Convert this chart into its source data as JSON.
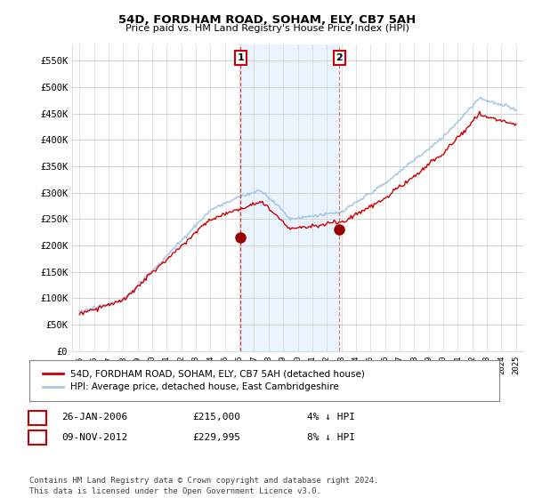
{
  "title": "54D, FORDHAM ROAD, SOHAM, ELY, CB7 5AH",
  "subtitle": "Price paid vs. HM Land Registry's House Price Index (HPI)",
  "ylabel_ticks": [
    "£0",
    "£50K",
    "£100K",
    "£150K",
    "£200K",
    "£250K",
    "£300K",
    "£350K",
    "£400K",
    "£450K",
    "£500K",
    "£550K"
  ],
  "ytick_values": [
    0,
    50000,
    100000,
    150000,
    200000,
    250000,
    300000,
    350000,
    400000,
    450000,
    500000,
    550000
  ],
  "ylim": [
    0,
    580000
  ],
  "xlim_start": 1994.5,
  "xlim_end": 2025.5,
  "transaction1_x": 2006.07,
  "transaction1_y": 215000,
  "transaction1_label": "1",
  "transaction1_date": "26-JAN-2006",
  "transaction1_price": "£215,000",
  "transaction1_note": "4% ↓ HPI",
  "transaction2_x": 2012.86,
  "transaction2_y": 229995,
  "transaction2_label": "2",
  "transaction2_date": "09-NOV-2012",
  "transaction2_price": "£229,995",
  "transaction2_note": "8% ↓ HPI",
  "hpi_color": "#a8c8e8",
  "price_color": "#cc0000",
  "marker_color": "#990000",
  "vline1_color": "#cc2222",
  "vline2_color": "#cc6666",
  "shade_color": "#ddeeff",
  "background_color": "#ffffff",
  "plot_bg_color": "#ffffff",
  "legend1_label": "54D, FORDHAM ROAD, SOHAM, ELY, CB7 5AH (detached house)",
  "legend2_label": "HPI: Average price, detached house, East Cambridgeshire",
  "footer": "Contains HM Land Registry data © Crown copyright and database right 2024.\nThis data is licensed under the Open Government Licence v3.0.",
  "xtick_years": [
    1995,
    1996,
    1997,
    1998,
    1999,
    2000,
    2001,
    2002,
    2003,
    2004,
    2005,
    2006,
    2007,
    2008,
    2009,
    2010,
    2011,
    2012,
    2013,
    2014,
    2015,
    2016,
    2017,
    2018,
    2019,
    2020,
    2021,
    2022,
    2023,
    2024,
    2025
  ]
}
